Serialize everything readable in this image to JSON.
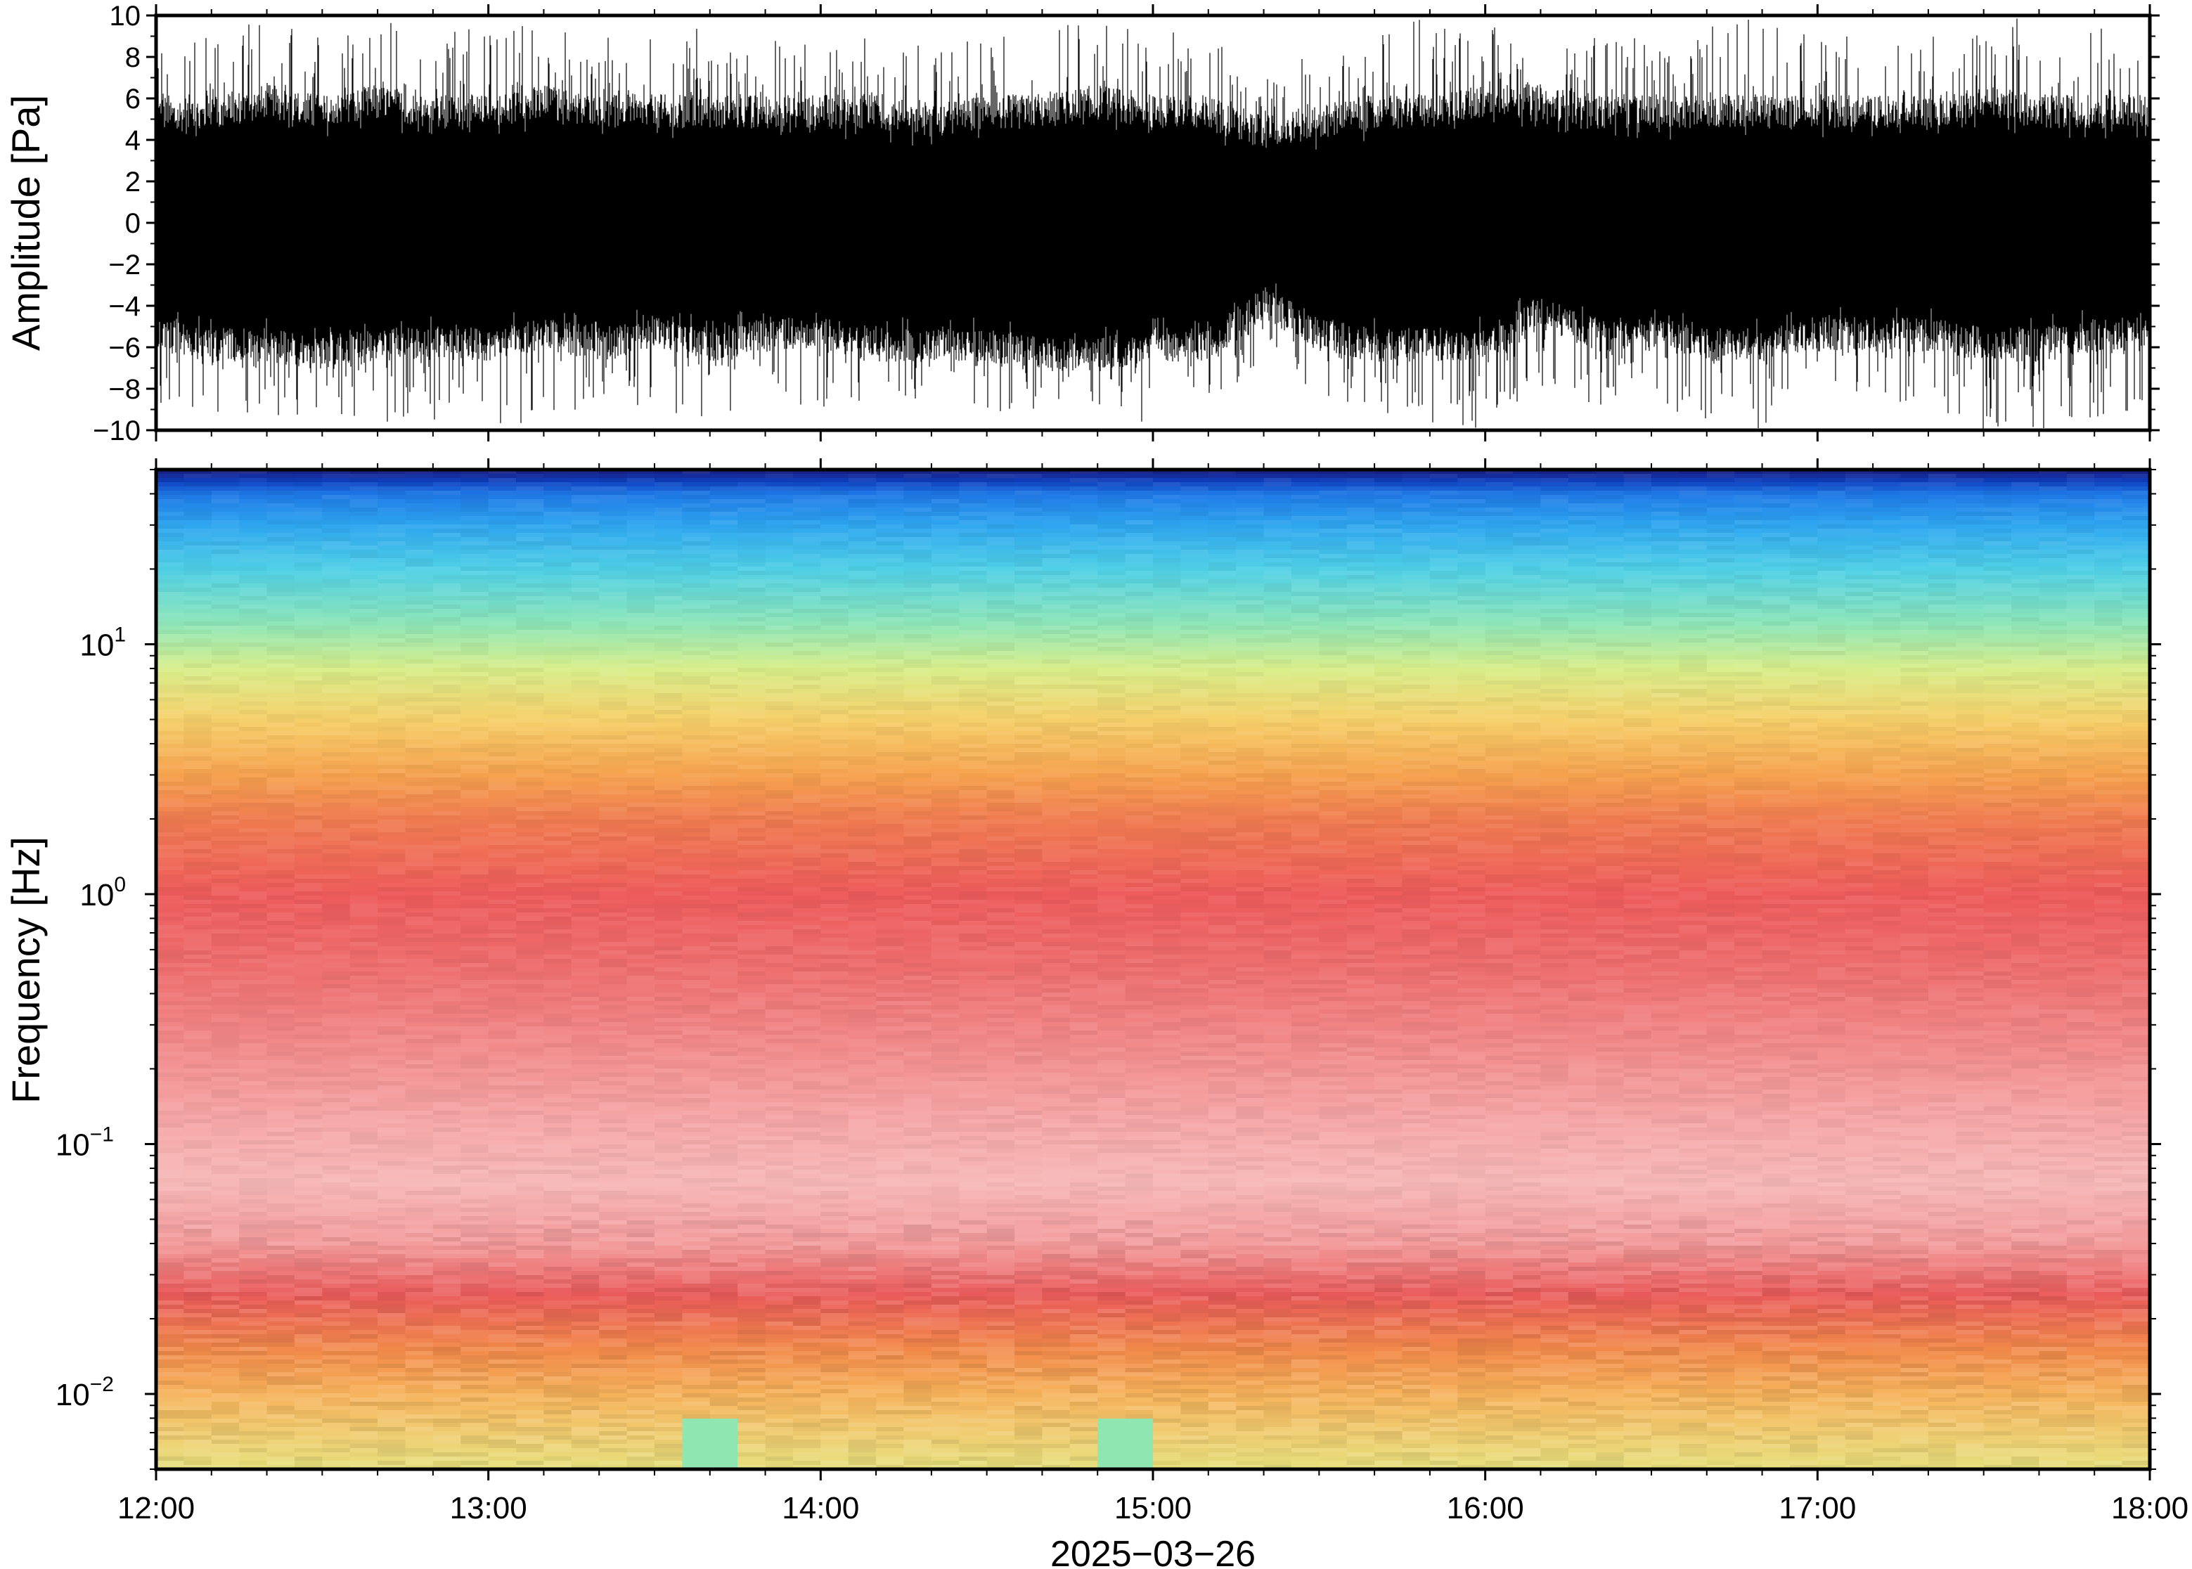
{
  "chart_data": [
    {
      "type": "line",
      "title": "",
      "ylabel": "Amplitude [Pa]",
      "ylim": [
        -10,
        10
      ],
      "yticks": [
        -10,
        -8,
        -6,
        -4,
        -2,
        0,
        2,
        4,
        6,
        8,
        10
      ],
      "ytick_labels": [
        "−10",
        "−8",
        "−6",
        "−4",
        "−2",
        "0",
        "2",
        "4",
        "6",
        "8",
        "10"
      ],
      "xlim": [
        "12:00",
        "18:00"
      ],
      "series": [
        {
          "color": "#000000",
          "description": "pressure waveform sampled every 10 minutes: typical +/- envelope",
          "x": [
            "12:00",
            "12:10",
            "12:20",
            "12:30",
            "12:40",
            "12:50",
            "13:00",
            "13:10",
            "13:20",
            "13:30",
            "13:40",
            "13:50",
            "14:00",
            "14:10",
            "14:20",
            "14:30",
            "14:40",
            "14:50",
            "15:00",
            "15:10",
            "15:20",
            "15:30",
            "15:40",
            "15:50",
            "16:00",
            "16:10",
            "16:20",
            "16:30",
            "16:40",
            "16:50",
            "17:00",
            "17:10",
            "17:20",
            "17:30",
            "17:40",
            "17:50",
            "18:00"
          ],
          "envelope_pos": [
            4,
            4,
            4.5,
            4,
            4.5,
            4,
            4,
            4.5,
            4,
            4,
            4,
            4,
            4,
            4,
            3.5,
            4,
            4,
            4.5,
            4,
            4,
            3,
            3.5,
            4,
            4,
            4.5,
            4.5,
            4,
            4,
            4,
            4,
            4,
            4,
            4,
            4.5,
            4,
            4,
            4
          ],
          "envelope_neg": [
            -4,
            -4.5,
            -4.5,
            -5,
            -4.5,
            -4.5,
            -4.5,
            -4,
            -4.5,
            -4,
            -4.5,
            -4,
            -4,
            -4.5,
            -4.5,
            -4.5,
            -5,
            -5,
            -4.5,
            -4.5,
            -2.5,
            -4,
            -4.5,
            -4.5,
            -4.5,
            -3,
            -4,
            -4,
            -4.5,
            -4.5,
            -4,
            -4,
            -4,
            -4.5,
            -4.5,
            -4,
            -4
          ],
          "peak_abs": [
            9,
            9,
            10,
            9.5,
            10,
            9.5,
            10,
            9.5,
            9,
            9,
            9.5,
            9,
            9,
            9,
            8.5,
            9,
            9.5,
            10,
            9.5,
            9,
            7,
            8.5,
            9,
            10,
            10,
            8,
            9,
            9,
            9.5,
            10,
            9,
            9,
            9,
            10,
            10,
            9.5,
            9
          ]
        }
      ]
    },
    {
      "type": "heatmap",
      "title": "",
      "ylabel": "Frequency [Hz]",
      "yscale": "log",
      "ylim": [
        0.005,
        50
      ],
      "yticks": [
        0.01,
        0.1,
        1,
        10
      ],
      "ytick_labels": [
        {
          "base": "10",
          "exp": "−2"
        },
        {
          "base": "10",
          "exp": "−1"
        },
        {
          "base": "10",
          "exp": "0"
        },
        {
          "base": "10",
          "exp": "1"
        }
      ],
      "xlabel": "2025−03−26",
      "xlim": [
        "12:00",
        "18:00"
      ],
      "xticks": [
        "12:00",
        "13:00",
        "14:00",
        "15:00",
        "16:00",
        "17:00",
        "18:00"
      ],
      "colormap": "rainbow (dark blue = low power, light pink = high power)",
      "frequency_bands_hz": [
        50,
        45,
        40,
        30,
        20,
        12,
        8,
        5,
        3,
        2,
        1,
        0.5,
        0.25,
        0.12,
        0.07,
        0.04,
        0.025,
        0.015,
        0.01,
        0.007,
        0.005
      ],
      "band_colors": [
        "#1a1a7a",
        "#0f3fbf",
        "#1e78e6",
        "#2ea6f0",
        "#4fd0e6",
        "#8fe6b8",
        "#d8ee8a",
        "#f6d06a",
        "#f6a24e",
        "#f07c50",
        "#ee5b5b",
        "#ee6e6e",
        "#f28a8a",
        "#f6a8a8",
        "#f7b8b8",
        "#f39a9a",
        "#ea5a5a",
        "#f28a4a",
        "#f6b25a",
        "#f0cc70",
        "#e6e07c"
      ],
      "notable_regions": [
        {
          "time": "13:40",
          "freq_range_hz": [
            0.005,
            0.008
          ],
          "color": "#8fe6b0"
        },
        {
          "time": "14:55",
          "freq_range_hz": [
            0.005,
            0.008
          ],
          "color": "#8fe6b0"
        }
      ]
    }
  ],
  "figure": {
    "top_xtick_labels": [],
    "bottom_xtick_labels": [
      "12:00",
      "13:00",
      "14:00",
      "15:00",
      "16:00",
      "17:00",
      "18:00"
    ],
    "date_label": "2025−03−26"
  }
}
